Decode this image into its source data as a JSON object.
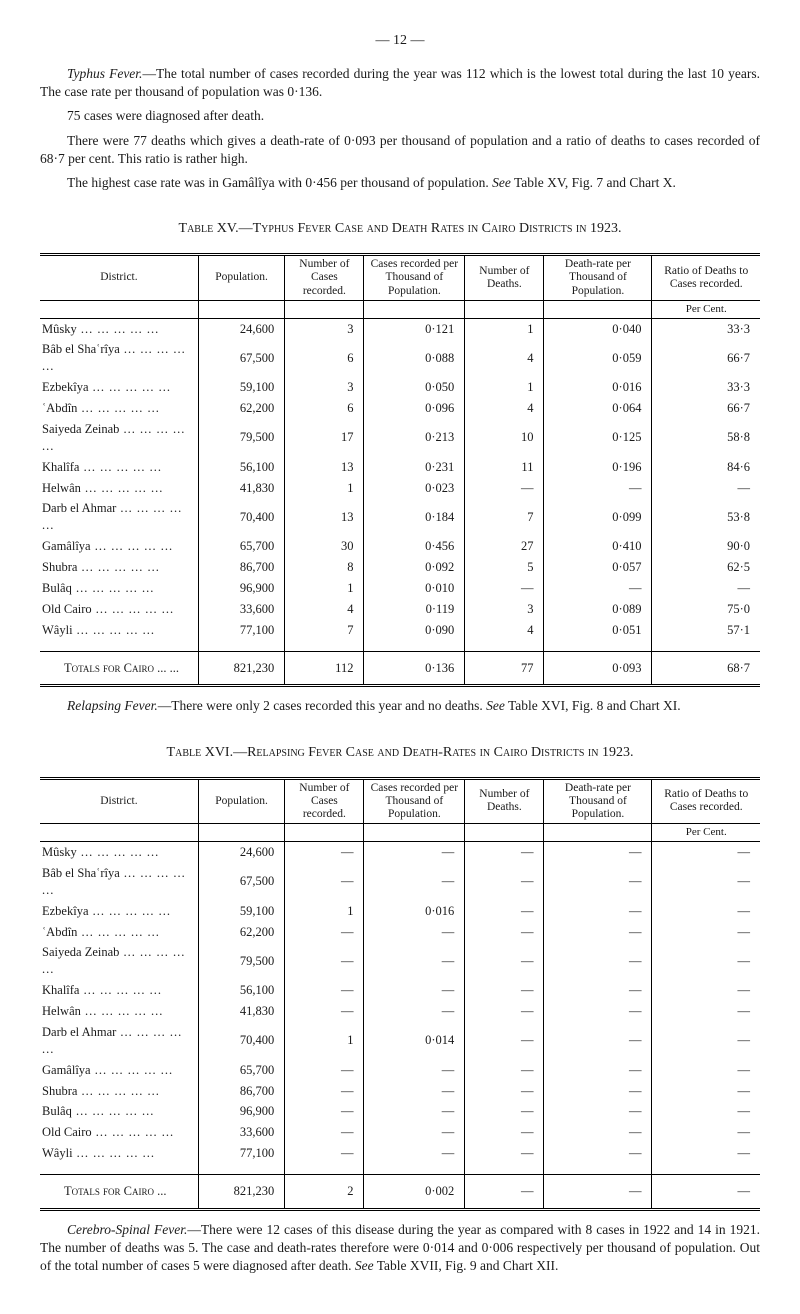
{
  "pageNumber": "— 12 —",
  "paragraphs": {
    "p1a": "Typhus Fever.",
    "p1b": "—The total number of cases recorded during the year was 112 which is the lowest total during the last 10 years. The case rate per thousand of population was 0·136.",
    "p2": "75 cases were diagnosed after death.",
    "p3": "There were 77 deaths which gives a death-rate of 0·093 per thousand of population and a ratio of deaths to cases recorded of 68·7 per cent. This ratio is rather high.",
    "p4a": "The highest case rate was in Gamâlîya with 0·456 per thousand of population. ",
    "p4b": "See",
    "p4c": " Table XV, Fig. 7 and Chart X.",
    "relapsing_a": "Relapsing Fever.",
    "relapsing_b": "—There were only 2 cases recorded this year and no deaths. ",
    "relapsing_c": "See",
    "relapsing_d": " Table XVI, Fig. 8 and Chart XI.",
    "cerebro_a": "Cerebro-Spinal Fever.",
    "cerebro_b": "—There were 12 cases of this disease during the year as compared with 8 cases in 1922 and 14 in 1921. The number of deaths was 5. The case and death-rates therefore were 0·014 and 0·006 respectively per thousand of population. Out of the total number of cases 5 were diagnosed after death. ",
    "cerebro_c": "See",
    "cerebro_d": " Table XVII, Fig. 9 and Chart XII."
  },
  "tableXV": {
    "caption": "Table XV.—Typhus Fever Case and Death Rates in Cairo Districts in 1923.",
    "headers": [
      "District.",
      "Population.",
      "Number of Cases recorded.",
      "Cases recorded per Thousand of Population.",
      "Number of Deaths.",
      "Death-rate per Thousand of Population.",
      "Ratio of Deaths to Cases recorded."
    ],
    "percentLabel": "Per Cent.",
    "rows": [
      {
        "d": "Mûsky",
        "pop": "24,600",
        "cases": "3",
        "caserate": "0·121",
        "deaths": "1",
        "deathrate": "0·040",
        "ratio": "33·3"
      },
      {
        "d": "Bâb el Shaʿrîya",
        "pop": "67,500",
        "cases": "6",
        "caserate": "0·088",
        "deaths": "4",
        "deathrate": "0·059",
        "ratio": "66·7"
      },
      {
        "d": "Ezbekîya",
        "pop": "59,100",
        "cases": "3",
        "caserate": "0·050",
        "deaths": "1",
        "deathrate": "0·016",
        "ratio": "33·3"
      },
      {
        "d": "ʿAbdîn",
        "pop": "62,200",
        "cases": "6",
        "caserate": "0·096",
        "deaths": "4",
        "deathrate": "0·064",
        "ratio": "66·7"
      },
      {
        "d": "Saiyeda Zeinab",
        "pop": "79,500",
        "cases": "17",
        "caserate": "0·213",
        "deaths": "10",
        "deathrate": "0·125",
        "ratio": "58·8"
      },
      {
        "d": "Khalîfa",
        "pop": "56,100",
        "cases": "13",
        "caserate": "0·231",
        "deaths": "11",
        "deathrate": "0·196",
        "ratio": "84·6"
      },
      {
        "d": "Helwân",
        "pop": "41,830",
        "cases": "1",
        "caserate": "0·023",
        "deaths": "—",
        "deathrate": "—",
        "ratio": "—"
      },
      {
        "d": "Darb el Ahmar",
        "pop": "70,400",
        "cases": "13",
        "caserate": "0·184",
        "deaths": "7",
        "deathrate": "0·099",
        "ratio": "53·8"
      },
      {
        "d": "Gamâlîya",
        "pop": "65,700",
        "cases": "30",
        "caserate": "0·456",
        "deaths": "27",
        "deathrate": "0·410",
        "ratio": "90·0"
      },
      {
        "d": "Shubra",
        "pop": "86,700",
        "cases": "8",
        "caserate": "0·092",
        "deaths": "5",
        "deathrate": "0·057",
        "ratio": "62·5"
      },
      {
        "d": "Bulâq",
        "pop": "96,900",
        "cases": "1",
        "caserate": "0·010",
        "deaths": "—",
        "deathrate": "—",
        "ratio": "—"
      },
      {
        "d": "Old Cairo",
        "pop": "33,600",
        "cases": "4",
        "caserate": "0·119",
        "deaths": "3",
        "deathrate": "0·089",
        "ratio": "75·0"
      },
      {
        "d": "Wâyli",
        "pop": "77,100",
        "cases": "7",
        "caserate": "0·090",
        "deaths": "4",
        "deathrate": "0·051",
        "ratio": "57·1"
      }
    ],
    "totals": {
      "d": "Totals for Cairo ... ...",
      "pop": "821,230",
      "cases": "112",
      "caserate": "0·136",
      "deaths": "77",
      "deathrate": "0·093",
      "ratio": "68·7"
    }
  },
  "tableXVI": {
    "caption": "Table XVI.—Relapsing Fever Case and Death-Rates in Cairo Districts in 1923.",
    "headers": [
      "District.",
      "Population.",
      "Number of Cases recorded.",
      "Cases recorded per Thousand of Population.",
      "Number of Deaths.",
      "Death-rate per Thousand of Population.",
      "Ratio of Deaths to Cases recorded."
    ],
    "percentLabel": "Per Cent.",
    "rows": [
      {
        "d": "Mûsky",
        "pop": "24,600",
        "cases": "—",
        "caserate": "—",
        "deaths": "—",
        "deathrate": "—",
        "ratio": "—"
      },
      {
        "d": "Bâb el Shaʿrîya",
        "pop": "67,500",
        "cases": "—",
        "caserate": "—",
        "deaths": "—",
        "deathrate": "—",
        "ratio": "—"
      },
      {
        "d": "Ezbekîya",
        "pop": "59,100",
        "cases": "1",
        "caserate": "0·016",
        "deaths": "—",
        "deathrate": "—",
        "ratio": "—"
      },
      {
        "d": "ʿAbdîn",
        "pop": "62,200",
        "cases": "—",
        "caserate": "—",
        "deaths": "—",
        "deathrate": "—",
        "ratio": "—"
      },
      {
        "d": "Saiyeda Zeinab",
        "pop": "79,500",
        "cases": "—",
        "caserate": "—",
        "deaths": "—",
        "deathrate": "—",
        "ratio": "—"
      },
      {
        "d": "Khalîfa",
        "pop": "56,100",
        "cases": "—",
        "caserate": "—",
        "deaths": "—",
        "deathrate": "—",
        "ratio": "—"
      },
      {
        "d": "Helwân",
        "pop": "41,830",
        "cases": "—",
        "caserate": "—",
        "deaths": "—",
        "deathrate": "—",
        "ratio": "—"
      },
      {
        "d": "Darb el Ahmar",
        "pop": "70,400",
        "cases": "1",
        "caserate": "0·014",
        "deaths": "—",
        "deathrate": "—",
        "ratio": "—"
      },
      {
        "d": "Gamâlîya",
        "pop": "65,700",
        "cases": "—",
        "caserate": "—",
        "deaths": "—",
        "deathrate": "—",
        "ratio": "—"
      },
      {
        "d": "Shubra",
        "pop": "86,700",
        "cases": "—",
        "caserate": "—",
        "deaths": "—",
        "deathrate": "—",
        "ratio": "—"
      },
      {
        "d": "Bulâq",
        "pop": "96,900",
        "cases": "—",
        "caserate": "—",
        "deaths": "—",
        "deathrate": "—",
        "ratio": "—"
      },
      {
        "d": "Old Cairo",
        "pop": "33,600",
        "cases": "—",
        "caserate": "—",
        "deaths": "—",
        "deathrate": "—",
        "ratio": "—"
      },
      {
        "d": "Wâyli",
        "pop": "77,100",
        "cases": "—",
        "caserate": "—",
        "deaths": "—",
        "deathrate": "—",
        "ratio": "—"
      }
    ],
    "totals": {
      "d": "Totals for Cairo ...",
      "pop": "821,230",
      "cases": "2",
      "caserate": "0·002",
      "deaths": "—",
      "deathrate": "—",
      "ratio": "—"
    }
  }
}
